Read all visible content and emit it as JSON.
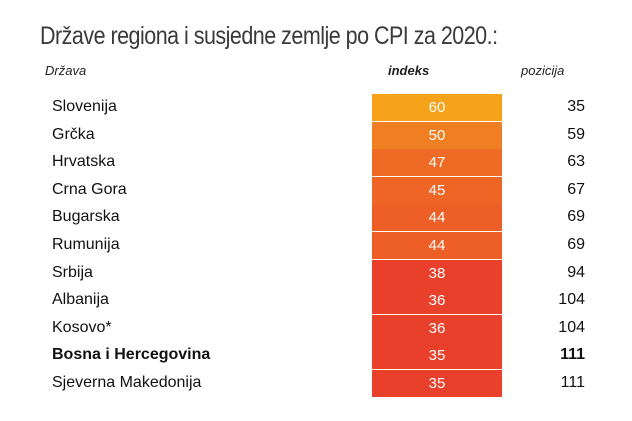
{
  "chart_data": {
    "type": "table",
    "title": "Države regiona i susjedne zemlje po CPI za 2020.:",
    "columns": [
      "Država",
      "indeks",
      "pozicija"
    ],
    "rows": [
      {
        "country": "Slovenija",
        "index": "60",
        "position": "35",
        "color": "#F7A21B",
        "bold": false
      },
      {
        "country": "Grčka",
        "index": "50",
        "position": "59",
        "color": "#F07E22",
        "bold": false
      },
      {
        "country": "Hrvatska",
        "index": "47",
        "position": "63",
        "color": "#EF6A25",
        "bold": false
      },
      {
        "country": "Crna Gora",
        "index": "45",
        "position": "67",
        "color": "#EE6526",
        "bold": false
      },
      {
        "country": "Bugarska",
        "index": "44",
        "position": "69",
        "color": "#EE5F27",
        "bold": false
      },
      {
        "country": "Rumunija",
        "index": "44",
        "position": "69",
        "color": "#EE5F27",
        "bold": false
      },
      {
        "country": "Srbija",
        "index": "38",
        "position": "94",
        "color": "#E8402A",
        "bold": false
      },
      {
        "country": "Albanija",
        "index": "36",
        "position": "104",
        "color": "#E8402A",
        "bold": false
      },
      {
        "country": "Kosovo*",
        "index": "36",
        "position": "104",
        "color": "#E8402A",
        "bold": false
      },
      {
        "country": "Bosna i Hercegovina",
        "index": "35",
        "position": "111",
        "color": "#E8402A",
        "bold": true
      },
      {
        "country": "Sjeverna Makedonija",
        "index": "35",
        "position": "111",
        "color": "#E8402A",
        "bold": false
      }
    ]
  }
}
